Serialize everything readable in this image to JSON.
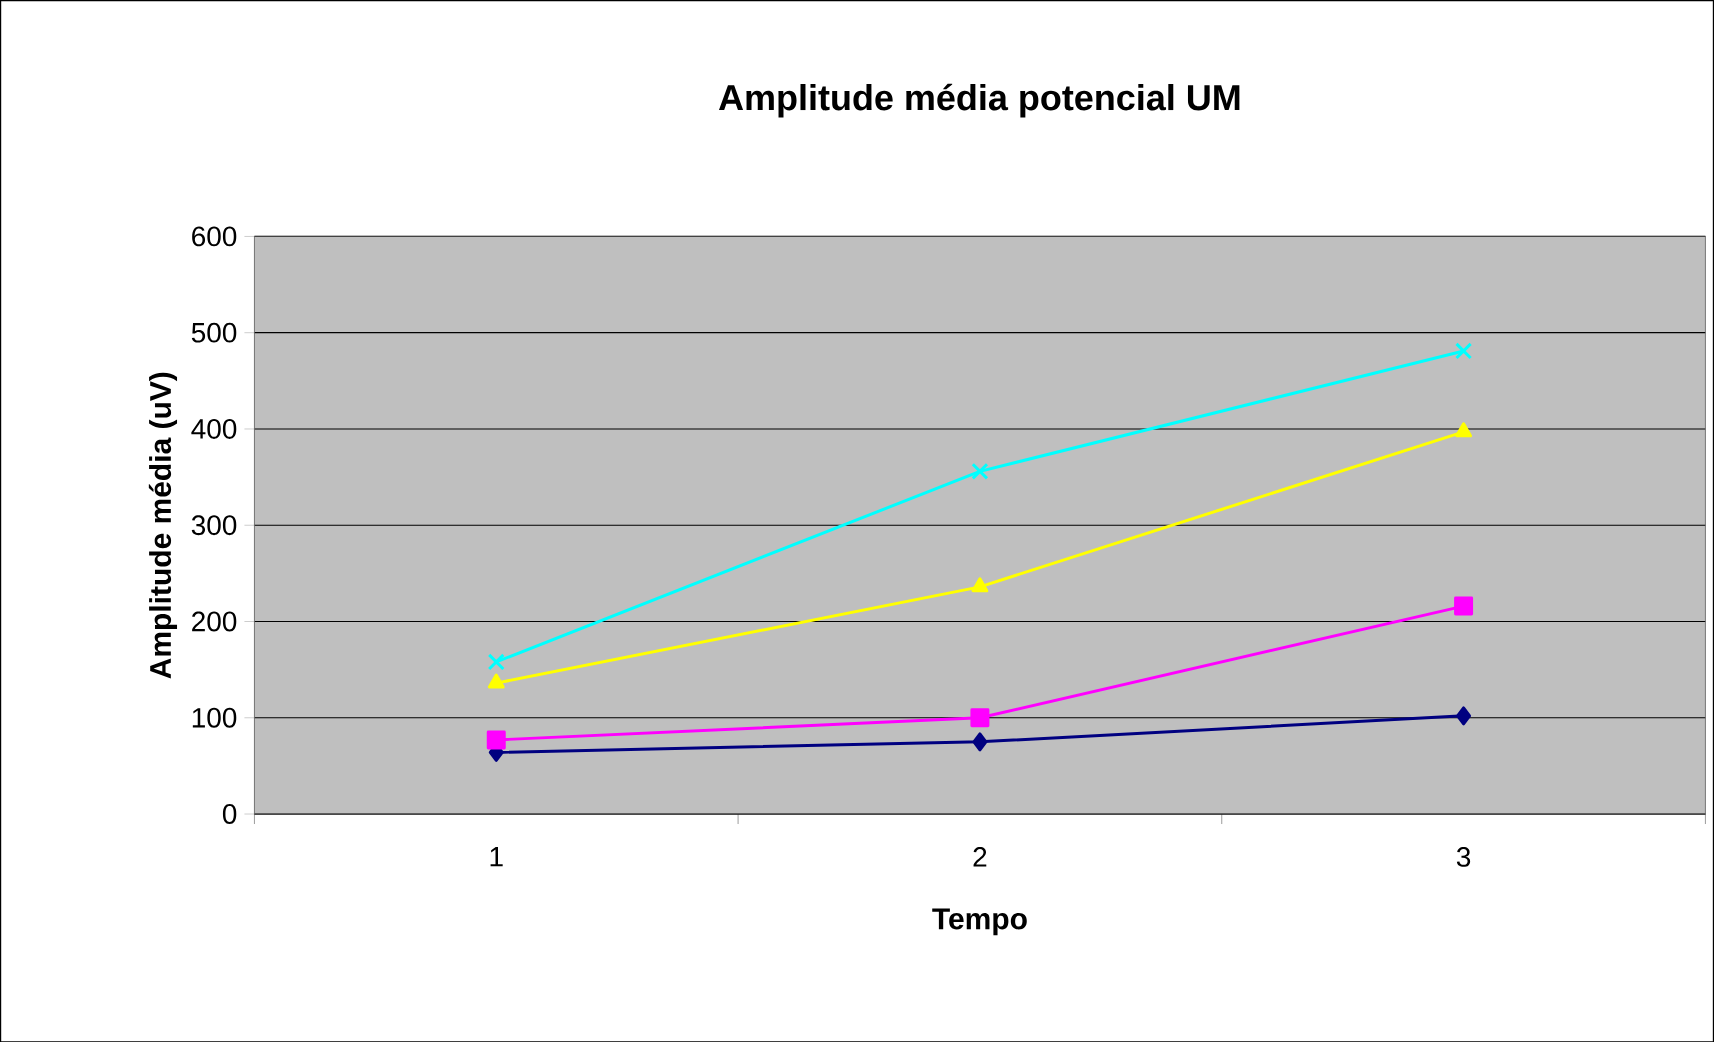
{
  "chart_data": {
    "type": "line",
    "title": "Amplitude média potencial UM",
    "xlabel": "Tempo",
    "ylabel": "Amplitude média (uV)",
    "categories": [
      "1",
      "2",
      "3"
    ],
    "series": [
      {
        "color": "#000080",
        "marker": "diamond",
        "values": [
          64,
          75,
          102
        ]
      },
      {
        "color": "#ff00ff",
        "marker": "square",
        "values": [
          77,
          100,
          216
        ]
      },
      {
        "color": "#ffff00",
        "marker": "triangle",
        "values": [
          136,
          236,
          397
        ]
      },
      {
        "color": "#00ffff",
        "marker": "cross",
        "values": [
          158,
          356,
          481
        ]
      }
    ],
    "ylim": [
      0,
      600
    ],
    "yticks": [
      0,
      100,
      200,
      300,
      400,
      500,
      600
    ],
    "grid": "y"
  }
}
